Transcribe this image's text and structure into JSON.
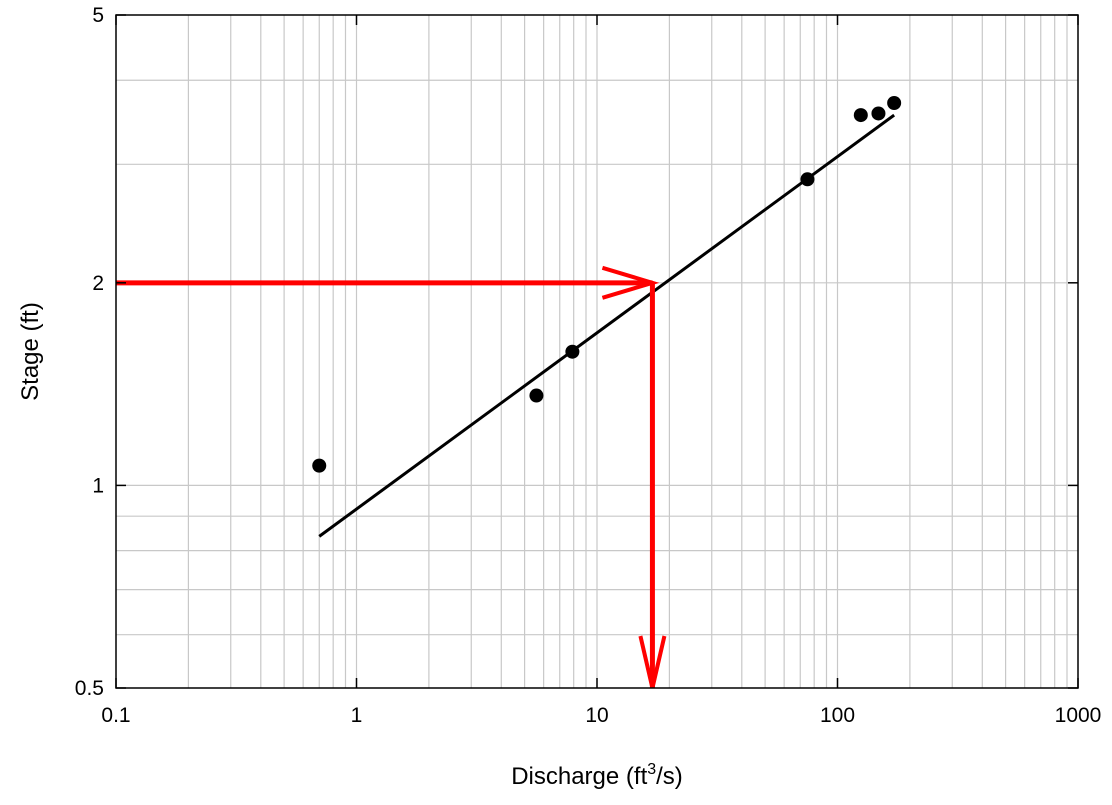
{
  "chart_data": {
    "type": "scatter",
    "xscale": "log",
    "yscale": "log",
    "xlim": [
      0.1,
      1000
    ],
    "ylim": [
      0.5,
      5
    ],
    "xticks": [
      {
        "value": 0.1,
        "label": "0.1"
      },
      {
        "value": 1,
        "label": "1"
      },
      {
        "value": 10,
        "label": "10"
      },
      {
        "value": 100,
        "label": "100"
      },
      {
        "value": 1000,
        "label": "1000"
      }
    ],
    "yticks": [
      {
        "value": 0.5,
        "label": "0.5"
      },
      {
        "value": 1,
        "label": "1"
      },
      {
        "value": 2,
        "label": "2"
      },
      {
        "value": 5,
        "label": "5"
      }
    ],
    "xlabel": {
      "main": "Discharge (ft",
      "sup": "3",
      "tail": "/s)"
    },
    "ylabel": "Stage (ft)",
    "grid": true,
    "points": [
      {
        "x": 0.7,
        "y": 1.07
      },
      {
        "x": 5.6,
        "y": 1.36
      },
      {
        "x": 7.9,
        "y": 1.58
      },
      {
        "x": 75,
        "y": 2.85
      },
      {
        "x": 125,
        "y": 3.55
      },
      {
        "x": 148,
        "y": 3.57
      },
      {
        "x": 172,
        "y": 3.7
      }
    ],
    "fit_line": [
      {
        "x": 0.7,
        "y": 0.84
      },
      {
        "x": 172,
        "y": 3.55
      }
    ],
    "annotation": {
      "stage": 2,
      "discharge": 17,
      "color": "#ff0000"
    }
  }
}
